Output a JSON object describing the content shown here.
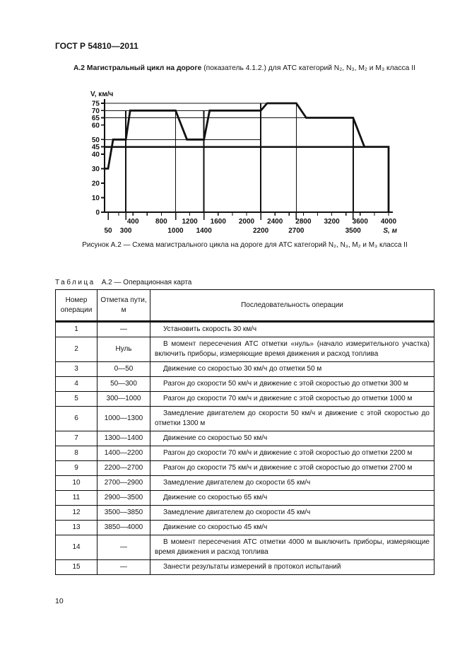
{
  "page": {
    "header": "ГОСТ Р 54810—2011",
    "number": "10"
  },
  "section": {
    "title_bold": "А.2 Магистральный цикл на дороге",
    "title_rest": " (показатель 4.1.2.) для АТС категорий N₂, N₃, M₂ и M₃ класса II"
  },
  "figure": {
    "caption": "Рисунок А.2 — Схема магистрального цикла на дороге для АТС категорий N₂, N₃, M₂ и M₃ класса II"
  },
  "chart_data": {
    "type": "line",
    "title": "",
    "xlabel": "S, м",
    "ylabel": "V, км/ч",
    "xlim": [
      0,
      4000
    ],
    "ylim": [
      0,
      75
    ],
    "grid": "partial",
    "legend": "none",
    "y_ticks": [
      0,
      10,
      20,
      30,
      40,
      45,
      50,
      60,
      65,
      70,
      75
    ],
    "x_labels_row1": [
      400,
      800,
      1200,
      1600,
      2000,
      2400,
      2800,
      3200,
      3600,
      4000
    ],
    "x_labels_row2": [
      50,
      300,
      1000,
      1400,
      2200,
      2700,
      3500
    ],
    "x_minor_tick_step": 200,
    "x_long_ticks": [
      50,
      300,
      1000,
      1400,
      2200,
      2700,
      3500
    ],
    "h_gridlines": [
      {
        "v": 75,
        "to": 2700,
        "thick": false
      },
      {
        "v": 70,
        "to": 2200,
        "thick": false
      },
      {
        "v": 65,
        "to": 3500,
        "thick": false
      },
      {
        "v": 50,
        "to": 2200,
        "thick": false
      },
      {
        "v": 45,
        "to": 4000,
        "thick": true
      }
    ],
    "v_gridlines": [
      {
        "s": 300,
        "top": 70,
        "thick": true
      },
      {
        "s": 1000,
        "top": 70,
        "thick": false
      },
      {
        "s": 1400,
        "top": 70,
        "thick": true
      },
      {
        "s": 2200,
        "top": 75,
        "thick": true
      },
      {
        "s": 2700,
        "top": 75,
        "thick": false
      },
      {
        "s": 3500,
        "top": 65,
        "thick": true
      }
    ],
    "series": [
      {
        "name": "speed_profile",
        "points": [
          [
            0,
            30
          ],
          [
            50,
            30
          ],
          [
            120,
            50
          ],
          [
            300,
            50
          ],
          [
            360,
            70
          ],
          [
            1000,
            70
          ],
          [
            1160,
            50
          ],
          [
            1400,
            50
          ],
          [
            1480,
            70
          ],
          [
            2200,
            70
          ],
          [
            2290,
            75
          ],
          [
            2700,
            75
          ],
          [
            2840,
            65
          ],
          [
            3500,
            65
          ],
          [
            3660,
            45
          ],
          [
            4000,
            45
          ],
          [
            4000,
            0
          ]
        ]
      }
    ]
  },
  "table": {
    "label_word": "Таблица",
    "label_rest": "А.2 — Операционная карта",
    "columns": [
      "Номер операции",
      "Отметка пути, м",
      "Последовательность операции"
    ],
    "rows": [
      {
        "num": "1",
        "mark": "—",
        "op": "Установить скорость 30 км/ч"
      },
      {
        "num": "2",
        "mark": "Нуль",
        "op": "В момент пересечения АТС отметки «нуль» (начало измерительного участка) включить приборы, измеряющие время движения и расход топлива"
      },
      {
        "num": "3",
        "mark": "0—50",
        "op": "Движение со скоростью 30 км/ч до отметки 50 м"
      },
      {
        "num": "4",
        "mark": "50—300",
        "op": "Разгон до скорости 50 км/ч и движение с этой скоростью до отметки 300 м"
      },
      {
        "num": "5",
        "mark": "300—1000",
        "op": "Разгон до скорости 70 км/ч и движение с этой скоростью до отметки 1000 м"
      },
      {
        "num": "6",
        "mark": "1000—1300",
        "op": "Замедление двигателем до скорости 50 км/ч и движение с этой скоростью до отметки 1300 м"
      },
      {
        "num": "7",
        "mark": "1300—1400",
        "op": "Движение со скоростью 50 км/ч"
      },
      {
        "num": "8",
        "mark": "1400—2200",
        "op": "Разгон до скорости 70 км/ч и движение с этой скоростью до отметки 2200 м"
      },
      {
        "num": "9",
        "mark": "2200—2700",
        "op": "Разгон до скорости 75 км/ч и движение с этой скоростью до отметки 2700 м"
      },
      {
        "num": "10",
        "mark": "2700—2900",
        "op": "Замедление двигателем до скорости 65 км/ч"
      },
      {
        "num": "11",
        "mark": "2900—3500",
        "op": "Движение со скоростью 65 км/ч"
      },
      {
        "num": "12",
        "mark": "3500—3850",
        "op": "Замедление двигателем до скорости 45 км/ч"
      },
      {
        "num": "13",
        "mark": "3850—4000",
        "op": "Движение со скоростью 45 км/ч"
      },
      {
        "num": "14",
        "mark": "—",
        "op": "В момент пересечения АТС отметки 4000 м выключить приборы, измеряющие время движения и расход топлива"
      },
      {
        "num": "15",
        "mark": "—",
        "op": "Занести результаты измерений в протокол испытаний"
      }
    ]
  },
  "colors": {
    "ink": "#111111",
    "paper": "#ffffff"
  }
}
